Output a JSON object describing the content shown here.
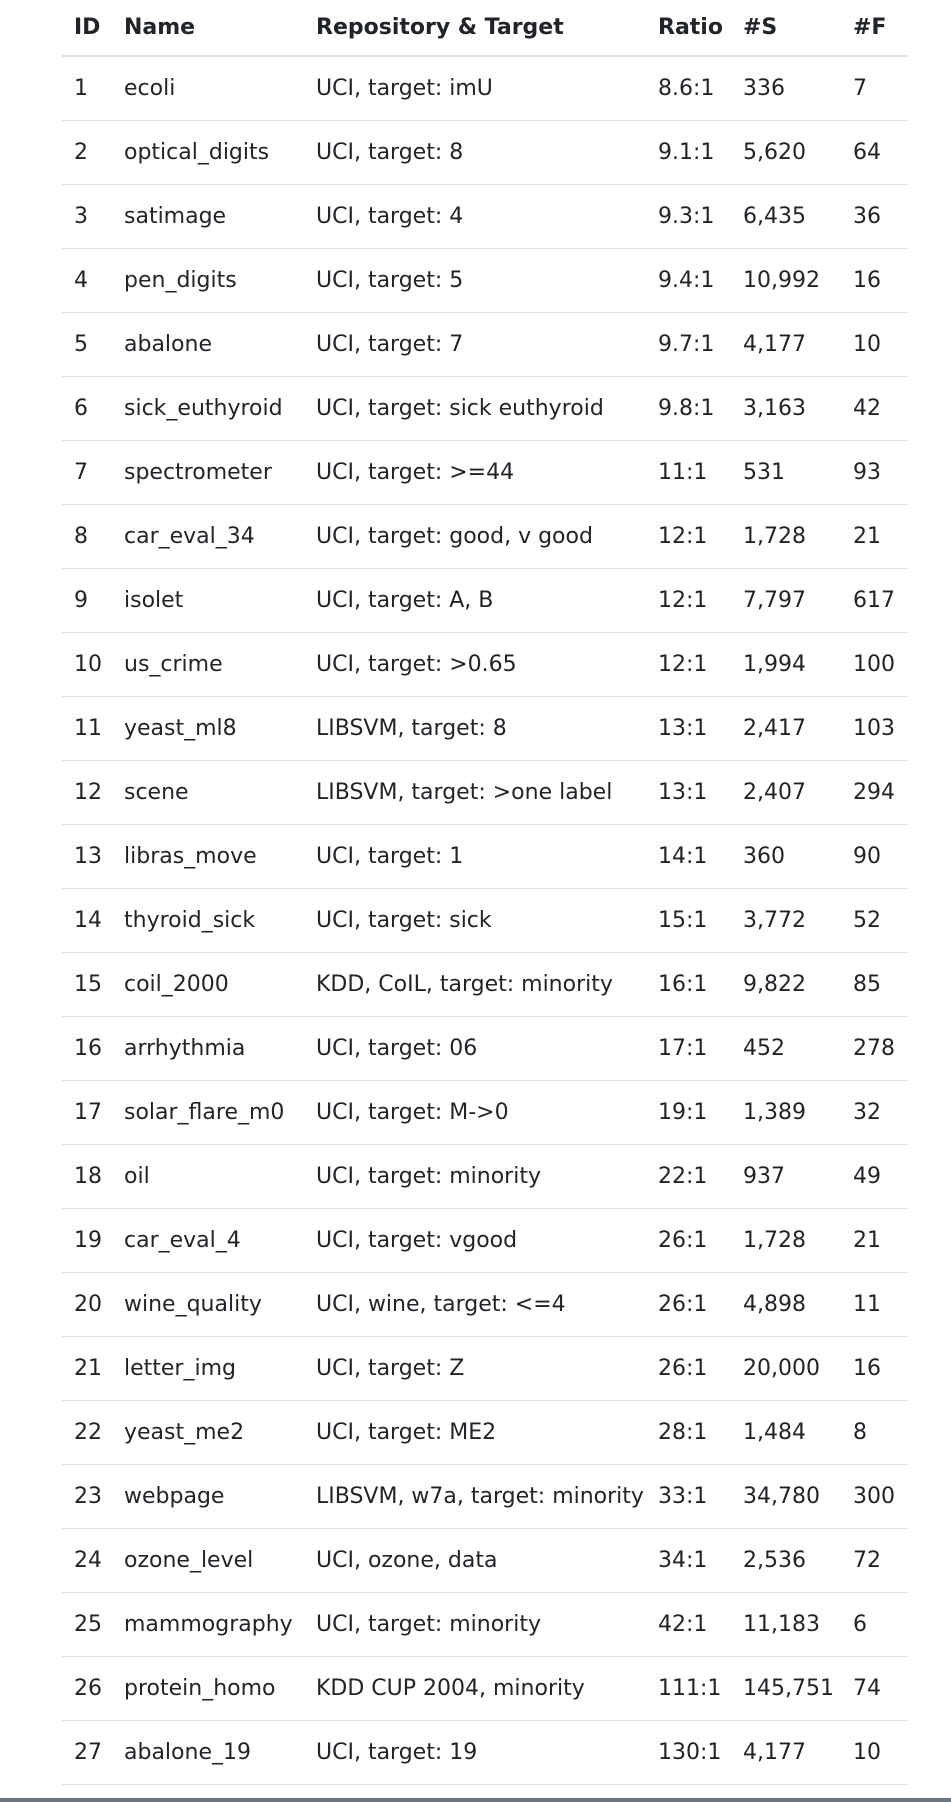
{
  "table": {
    "headers": [
      "ID",
      "Name",
      "Repository & Target",
      "Ratio",
      "#S",
      "#F"
    ],
    "rows": [
      [
        "1",
        "ecoli",
        "UCI, target: imU",
        "8.6:1",
        "336",
        "7"
      ],
      [
        "2",
        "optical_digits",
        "UCI, target: 8",
        "9.1:1",
        "5,620",
        "64"
      ],
      [
        "3",
        "satimage",
        "UCI, target: 4",
        "9.3:1",
        "6,435",
        "36"
      ],
      [
        "4",
        "pen_digits",
        "UCI, target: 5",
        "9.4:1",
        "10,992",
        "16"
      ],
      [
        "5",
        "abalone",
        "UCI, target: 7",
        "9.7:1",
        "4,177",
        "10"
      ],
      [
        "6",
        "sick_euthyroid",
        "UCI, target: sick euthyroid",
        "9.8:1",
        "3,163",
        "42"
      ],
      [
        "7",
        "spectrometer",
        "UCI, target: >=44",
        "11:1",
        "531",
        "93"
      ],
      [
        "8",
        "car_eval_34",
        "UCI, target: good, v good",
        "12:1",
        "1,728",
        "21"
      ],
      [
        "9",
        "isolet",
        "UCI, target: A, B",
        "12:1",
        "7,797",
        "617"
      ],
      [
        "10",
        "us_crime",
        "UCI, target: >0.65",
        "12:1",
        "1,994",
        "100"
      ],
      [
        "11",
        "yeast_ml8",
        "LIBSVM, target: 8",
        "13:1",
        "2,417",
        "103"
      ],
      [
        "12",
        "scene",
        "LIBSVM, target: >one label",
        "13:1",
        "2,407",
        "294"
      ],
      [
        "13",
        "libras_move",
        "UCI, target: 1",
        "14:1",
        "360",
        "90"
      ],
      [
        "14",
        "thyroid_sick",
        "UCI, target: sick",
        "15:1",
        "3,772",
        "52"
      ],
      [
        "15",
        "coil_2000",
        "KDD, CoIL, target: minority",
        "16:1",
        "9,822",
        "85"
      ],
      [
        "16",
        "arrhythmia",
        "UCI, target: 06",
        "17:1",
        "452",
        "278"
      ],
      [
        "17",
        "solar_flare_m0",
        "UCI, target: M->0",
        "19:1",
        "1,389",
        "32"
      ],
      [
        "18",
        "oil",
        "UCI, target: minority",
        "22:1",
        "937",
        "49"
      ],
      [
        "19",
        "car_eval_4",
        "UCI, target: vgood",
        "26:1",
        "1,728",
        "21"
      ],
      [
        "20",
        "wine_quality",
        "UCI, wine, target: <=4",
        "26:1",
        "4,898",
        "11"
      ],
      [
        "21",
        "letter_img",
        "UCI, target: Z",
        "26:1",
        "20,000",
        "16"
      ],
      [
        "22",
        "yeast_me2",
        "UCI, target: ME2",
        "28:1",
        "1,484",
        "8"
      ],
      [
        "23",
        "webpage",
        "LIBSVM, w7a, target: minority",
        "33:1",
        "34,780",
        "300"
      ],
      [
        "24",
        "ozone_level",
        "UCI, ozone, data",
        "34:1",
        "2,536",
        "72"
      ],
      [
        "25",
        "mammography",
        "UCI, target: minority",
        "42:1",
        "11,183",
        "6"
      ],
      [
        "26",
        "protein_homo",
        "KDD CUP 2004, minority",
        "111:1",
        "145,751",
        "74"
      ],
      [
        "27",
        "abalone_19",
        "UCI, target: 19",
        "130:1",
        "4,177",
        "10"
      ]
    ]
  }
}
